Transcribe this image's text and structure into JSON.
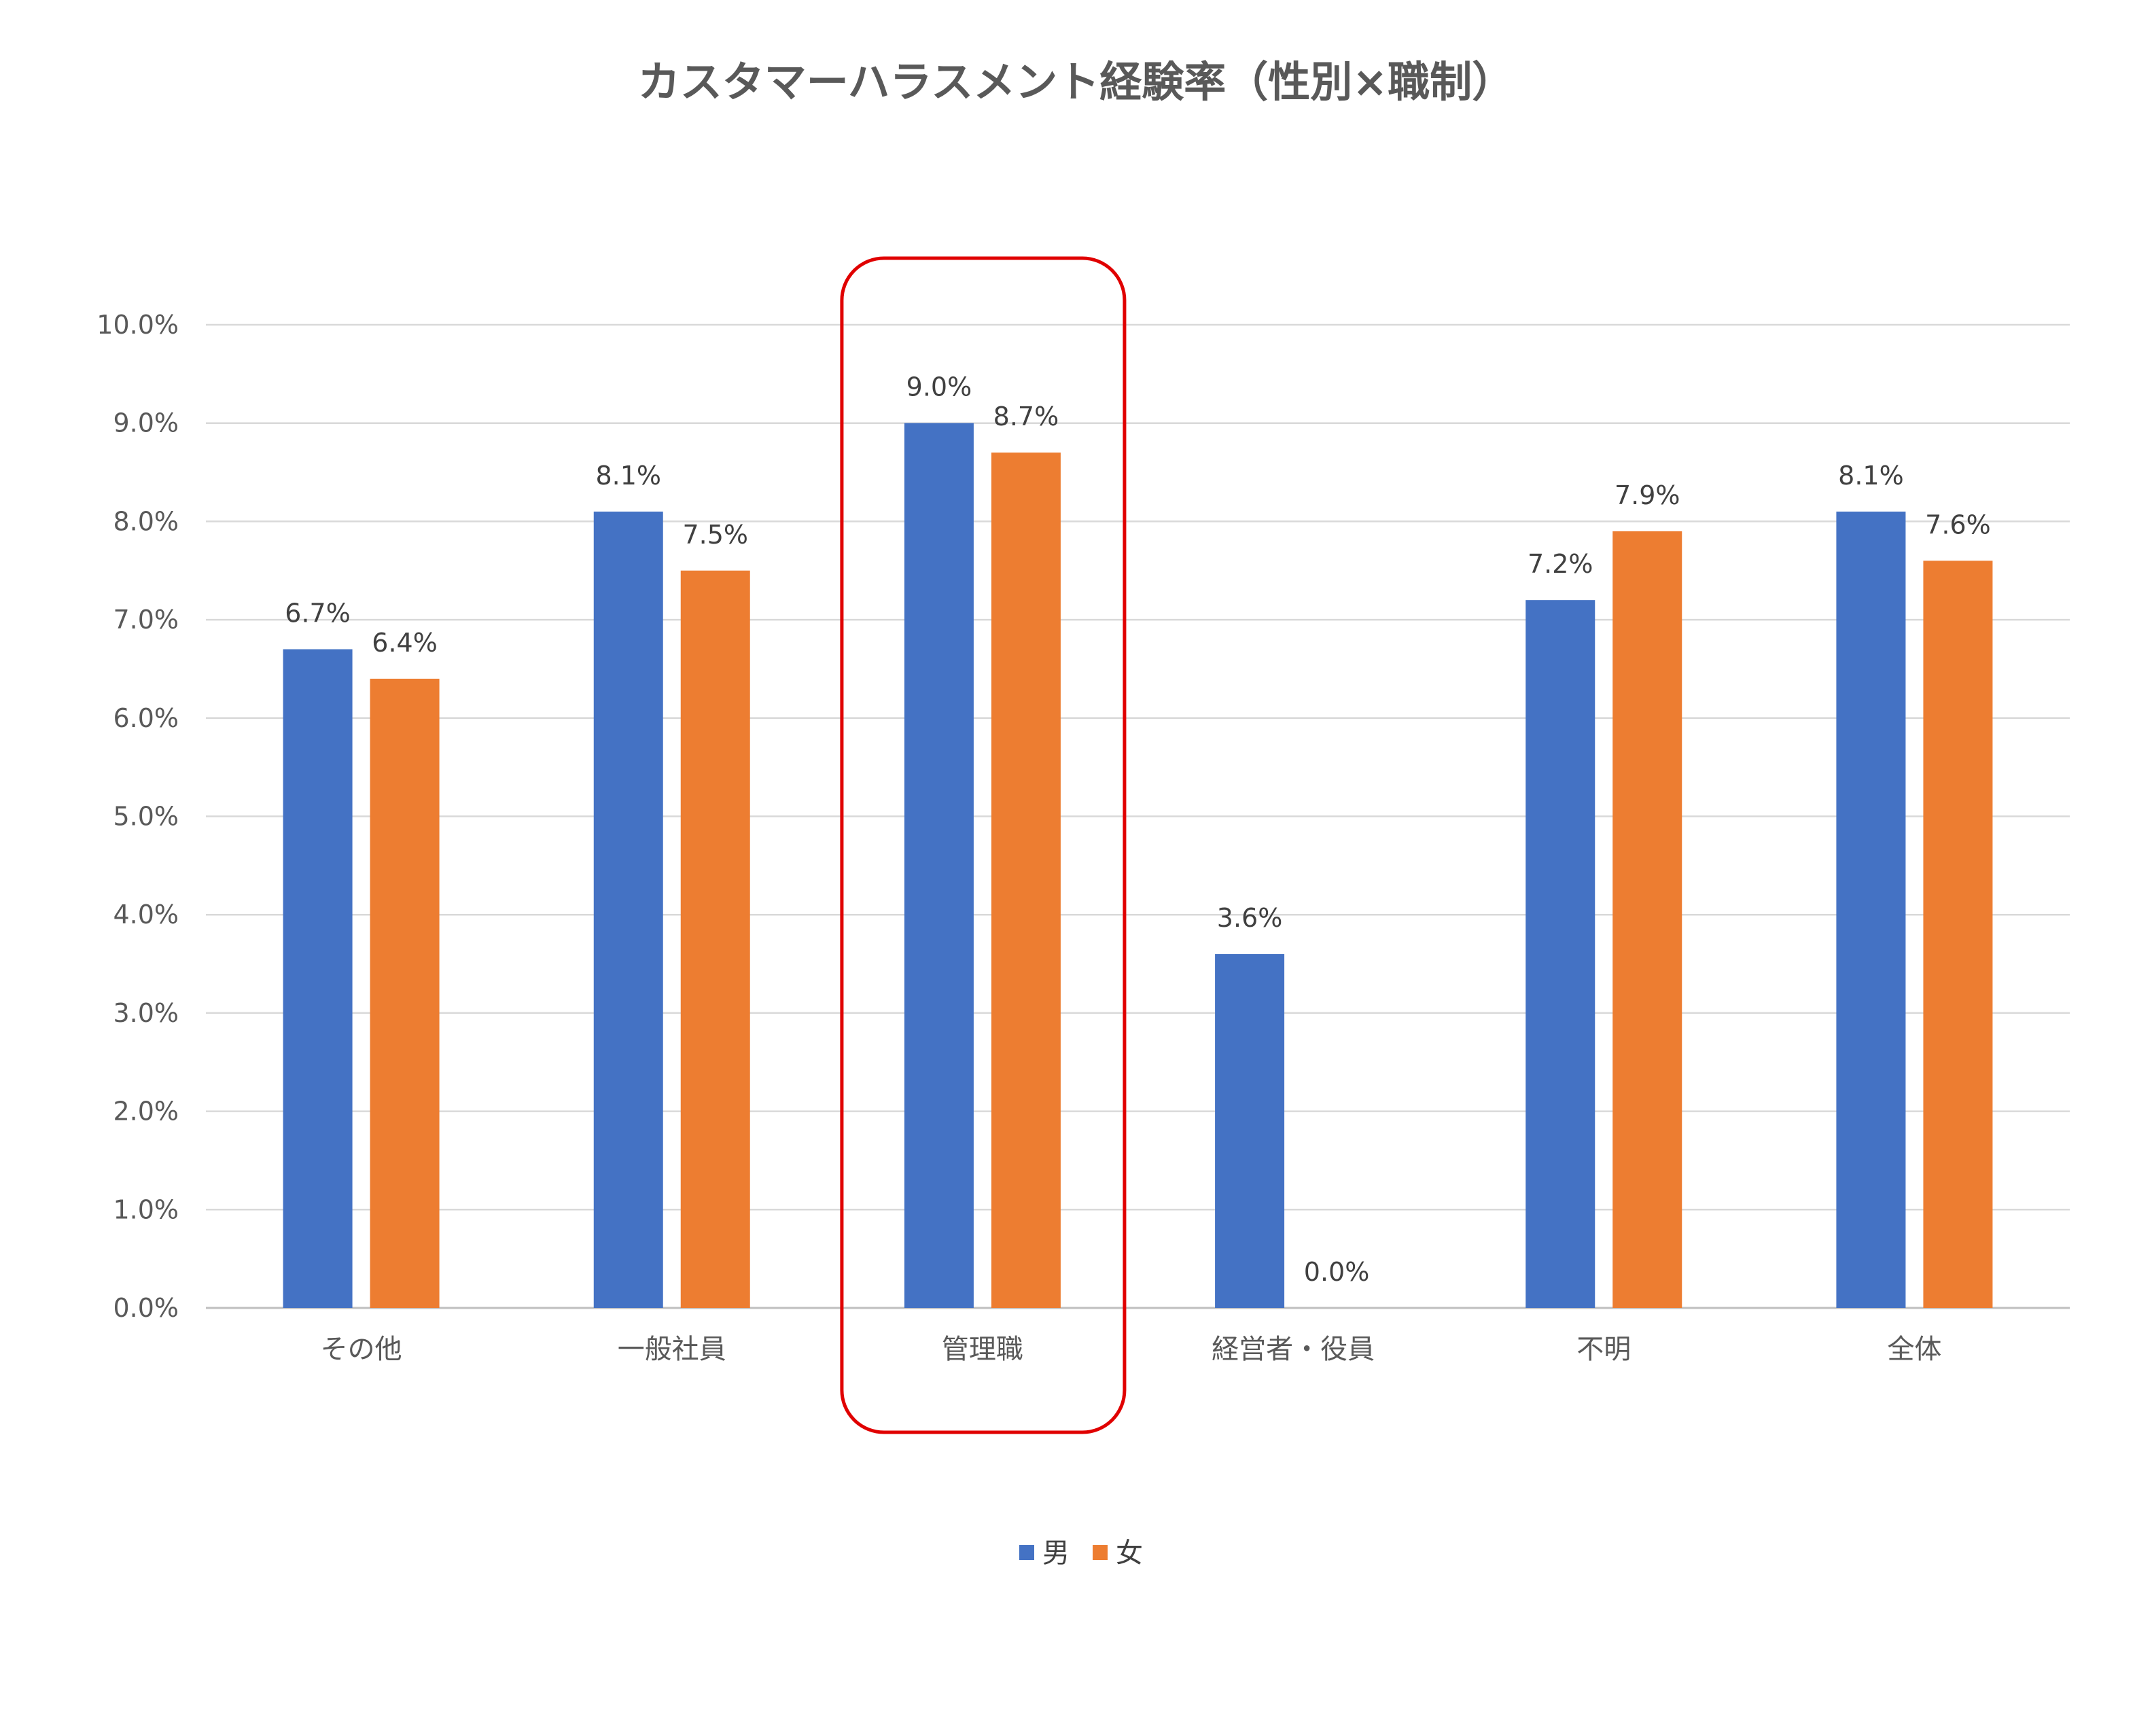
{
  "chart_data": {
    "type": "bar",
    "title": "カスタマーハラスメント経験率（性別×職制）",
    "categories": [
      "その他",
      "一般社員",
      "管理職",
      "経営者・役員",
      "不明",
      "全体"
    ],
    "series": [
      {
        "name": "男",
        "color": "#4472C4",
        "values": [
          6.7,
          8.1,
          9.0,
          3.6,
          7.2,
          8.1
        ],
        "labels": [
          "6.7%",
          "8.1%",
          "9.0%",
          "3.6%",
          "7.2%",
          "8.1%"
        ]
      },
      {
        "name": "女",
        "color": "#ED7D31",
        "values": [
          6.4,
          7.5,
          8.7,
          0.0,
          7.9,
          7.6
        ],
        "labels": [
          "6.4%",
          "7.5%",
          "8.7%",
          "0.0%",
          "7.9%",
          "7.6%"
        ]
      }
    ],
    "ylim": [
      0,
      10
    ],
    "yticks": [
      "0.0%",
      "1.0%",
      "2.0%",
      "3.0%",
      "4.0%",
      "5.0%",
      "6.0%",
      "7.0%",
      "8.0%",
      "9.0%",
      "10.0%"
    ],
    "grid": true,
    "legend_position": "bottom",
    "highlight": {
      "category": "管理職",
      "color": "#E00000"
    }
  }
}
